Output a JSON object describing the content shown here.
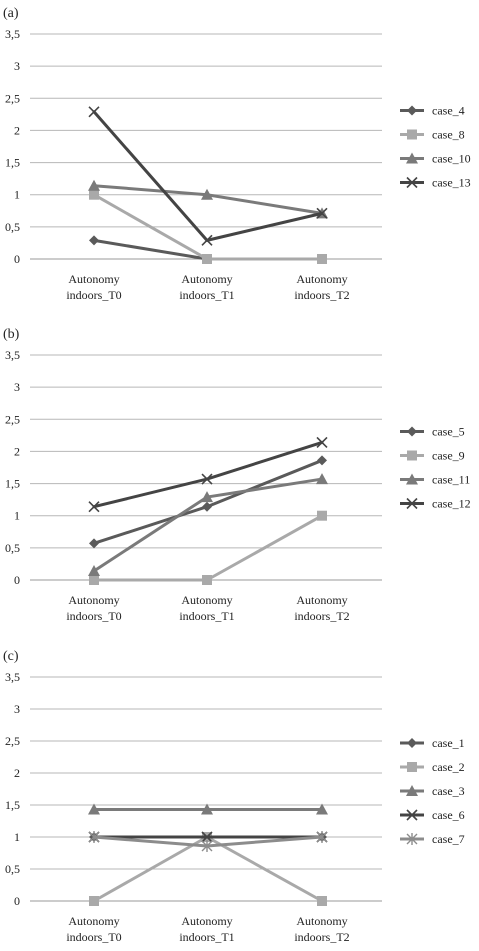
{
  "chart_data": [
    {
      "panel_label": "(a)",
      "type": "line",
      "categories": [
        "Autonomy indoors_T0",
        "Autonomy indoors_T1",
        "Autonomy indoors_T2"
      ],
      "ylim": [
        0,
        3.5
      ],
      "y_ticks": [
        "0",
        "0,5",
        "1",
        "1,5",
        "2",
        "2,5",
        "3",
        "3,5"
      ],
      "grid": true,
      "legend": "right",
      "series": [
        {
          "name": "case_4",
          "values": [
            0.29,
            0.0,
            0.0
          ],
          "color": "#5a5a5a",
          "marker": "diamond"
        },
        {
          "name": "case_8",
          "values": [
            1.0,
            0.0,
            0.0
          ],
          "color": "#a9a9a9",
          "marker": "square"
        },
        {
          "name": "case_10",
          "values": [
            1.14,
            1.0,
            0.71
          ],
          "color": "#7a7a7a",
          "marker": "triangle"
        },
        {
          "name": "case_13",
          "values": [
            2.29,
            0.29,
            0.71
          ],
          "color": "#444444",
          "marker": "x"
        }
      ]
    },
    {
      "panel_label": "(b)",
      "type": "line",
      "categories": [
        "Autonomy indoors_T0",
        "Autonomy indoors_T1",
        "Autonomy indoors_T2"
      ],
      "ylim": [
        0,
        3.5
      ],
      "y_ticks": [
        "0",
        "0,5",
        "1",
        "1,5",
        "2",
        "2,5",
        "3",
        "3,5"
      ],
      "grid": true,
      "legend": "right",
      "series": [
        {
          "name": "case_5",
          "values": [
            0.57,
            1.14,
            1.86
          ],
          "color": "#5a5a5a",
          "marker": "diamond"
        },
        {
          "name": "case_9",
          "values": [
            0.0,
            0.0,
            1.0
          ],
          "color": "#a9a9a9",
          "marker": "square"
        },
        {
          "name": "case_11",
          "values": [
            0.14,
            1.29,
            1.57
          ],
          "color": "#7a7a7a",
          "marker": "triangle"
        },
        {
          "name": "case_12",
          "values": [
            1.14,
            1.57,
            2.14
          ],
          "color": "#444444",
          "marker": "x"
        }
      ]
    },
    {
      "panel_label": "(c)",
      "type": "line",
      "categories": [
        "Autonomy indoors_T0",
        "Autonomy indoors_T1",
        "Autonomy indoors_T2"
      ],
      "ylim": [
        0,
        3.5
      ],
      "y_ticks": [
        "0",
        "0,5",
        "1",
        "1,5",
        "2",
        "2,5",
        "3",
        "3,5"
      ],
      "grid": true,
      "legend": "right",
      "series": [
        {
          "name": "case_1",
          "values": [
            1.0,
            1.0,
            1.0
          ],
          "color": "#5a5a5a",
          "marker": "diamond"
        },
        {
          "name": "case_2",
          "values": [
            0.0,
            1.0,
            0.0
          ],
          "color": "#a9a9a9",
          "marker": "square"
        },
        {
          "name": "case_3",
          "values": [
            1.43,
            1.43,
            1.43
          ],
          "color": "#7a7a7a",
          "marker": "triangle"
        },
        {
          "name": "case_6",
          "values": [
            1.0,
            1.0,
            1.0
          ],
          "color": "#444444",
          "marker": "x"
        },
        {
          "name": "case_7",
          "values": [
            1.0,
            0.86,
            1.0
          ],
          "color": "#8c8c8c",
          "marker": "asterisk"
        }
      ]
    }
  ]
}
